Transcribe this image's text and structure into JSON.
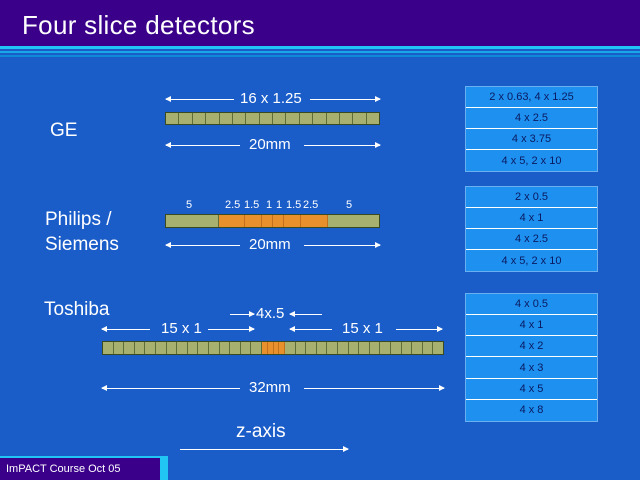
{
  "title": "Four slice detectors",
  "footer": "ImPACT Course Oct 05",
  "ge": {
    "name": "GE",
    "top_label": "16 x 1.25",
    "bottom_label": "20mm",
    "modes": [
      "2 x 0.63,  4 x 1.25",
      "4 x 2.5",
      "4 x 3.75",
      "4 x 5, 2 x 10"
    ]
  },
  "philips": {
    "name_line1": "Philips /",
    "name_line2": "Siemens",
    "top_labels": [
      "5",
      "2.5",
      "1.5",
      "1",
      "1",
      "1.5",
      "2.5",
      "5"
    ],
    "bottom_label": "20mm",
    "modes": [
      "2 x 0.5",
      "4 x 1",
      "4 x 2.5",
      "4 x 5, 2 x 10"
    ]
  },
  "toshiba": {
    "name": "Toshiba",
    "center_label": "4x.5",
    "left_label": "15 x 1",
    "right_label": "15 x 1",
    "bottom_label": "32mm",
    "modes": [
      "4 x 0.5",
      "4 x 1",
      "4 x 2",
      "4 x 3",
      "4 x 5",
      "4 x 8"
    ]
  },
  "z_axis_label": "z-axis",
  "colors": {
    "background": "#1a5cc8",
    "title_bar": "#3a008a",
    "accent": "#22c6f4",
    "element": "#a8b070",
    "highlight": "#e8902c",
    "table": "#1e90f0"
  }
}
